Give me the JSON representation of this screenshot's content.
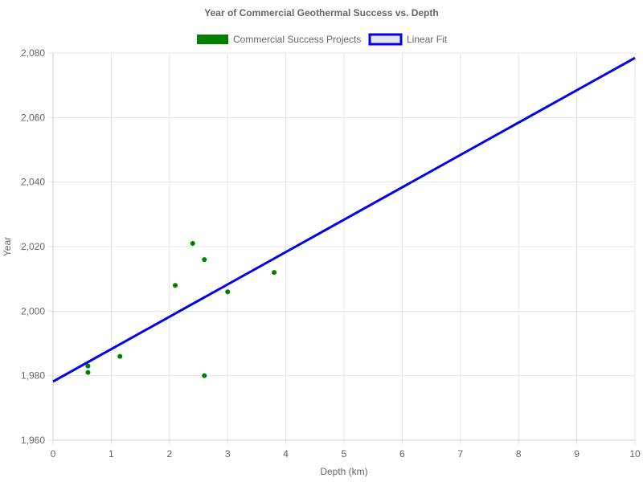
{
  "chart_data": {
    "type": "scatter",
    "title": "Year of Commercial Geothermal Success vs. Depth",
    "xlabel": "Depth (km)",
    "ylabel": "Year",
    "xlim": [
      0,
      10
    ],
    "ylim": [
      1960,
      2080
    ],
    "x_ticks": [
      "0",
      "1",
      "2",
      "3",
      "4",
      "5",
      "6",
      "7",
      "8",
      "9",
      "10"
    ],
    "y_ticks": [
      "1,960",
      "1,980",
      "2,000",
      "2,020",
      "2,040",
      "2,060",
      "2,080"
    ],
    "grid": true,
    "legend_position": "top-center",
    "series": [
      {
        "name": "Commercial Success Projects",
        "kind": "scatter",
        "color": "#008000",
        "points": [
          {
            "x": 0.6,
            "y": 1983
          },
          {
            "x": 0.6,
            "y": 1981
          },
          {
            "x": 1.15,
            "y": 1986
          },
          {
            "x": 2.1,
            "y": 2008
          },
          {
            "x": 2.4,
            "y": 2021
          },
          {
            "x": 2.6,
            "y": 2016
          },
          {
            "x": 2.6,
            "y": 1980
          },
          {
            "x": 3.0,
            "y": 2006
          },
          {
            "x": 3.8,
            "y": 2012
          }
        ]
      },
      {
        "name": "Linear Fit",
        "kind": "line",
        "color": "#0000ee",
        "points": [
          {
            "x": 0,
            "y": 1978.2
          },
          {
            "x": 10,
            "y": 2078.5
          }
        ]
      }
    ]
  }
}
